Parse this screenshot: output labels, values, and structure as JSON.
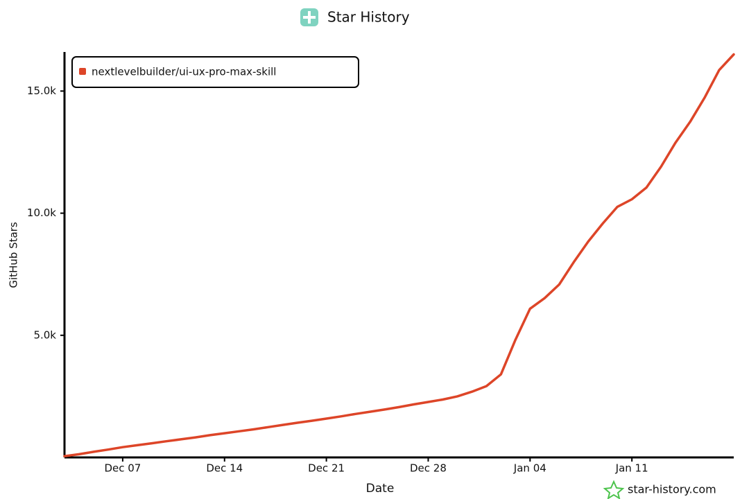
{
  "chart_data": {
    "type": "line",
    "title": "Star History",
    "xlabel": "Date",
    "ylabel": "GitHub Stars",
    "credit": "star-history.com",
    "legend": "top-left",
    "x": [
      "Dec 03",
      "Dec 04",
      "Dec 05",
      "Dec 06",
      "Dec 07",
      "Dec 08",
      "Dec 09",
      "Dec 10",
      "Dec 11",
      "Dec 12",
      "Dec 13",
      "Dec 14",
      "Dec 15",
      "Dec 16",
      "Dec 17",
      "Dec 18",
      "Dec 19",
      "Dec 20",
      "Dec 21",
      "Dec 22",
      "Dec 23",
      "Dec 24",
      "Dec 25",
      "Dec 26",
      "Dec 27",
      "Dec 28",
      "Dec 29",
      "Dec 30",
      "Dec 31",
      "Jan 01",
      "Jan 02",
      "Jan 03",
      "Jan 04",
      "Jan 05",
      "Jan 06",
      "Jan 07",
      "Jan 08",
      "Jan 09",
      "Jan 10",
      "Jan 11",
      "Jan 12",
      "Jan 13",
      "Jan 14",
      "Jan 15",
      "Jan 16",
      "Jan 17",
      "Jan 18"
    ],
    "series": [
      {
        "name": "nextlevelbuilder/ui-ux-pro-max-skill",
        "color": "#dd4528",
        "values": [
          50,
          130,
          230,
          320,
          420,
          500,
          580,
          660,
          740,
          820,
          910,
          990,
          1070,
          1150,
          1240,
          1330,
          1420,
          1500,
          1590,
          1680,
          1780,
          1870,
          1960,
          2060,
          2170,
          2270,
          2370,
          2500,
          2690,
          2920,
          3400,
          4820,
          6090,
          6520,
          7080,
          7990,
          8840,
          9580,
          10260,
          10570,
          11050,
          11900,
          12890,
          13740,
          14730,
          15860,
          16500
        ]
      }
    ],
    "xlim": [
      "Dec 03",
      "Jan 18"
    ],
    "xticks": [
      "Dec 07",
      "Dec 14",
      "Dec 21",
      "Dec 28",
      "Jan 04",
      "Jan 11"
    ],
    "ylim": [
      0,
      16600
    ],
    "yticks": [
      {
        "value": 5000,
        "label": "5.0k"
      },
      {
        "value": 10000,
        "label": "10.0k"
      },
      {
        "value": 15000,
        "label": "15.0k"
      }
    ]
  }
}
